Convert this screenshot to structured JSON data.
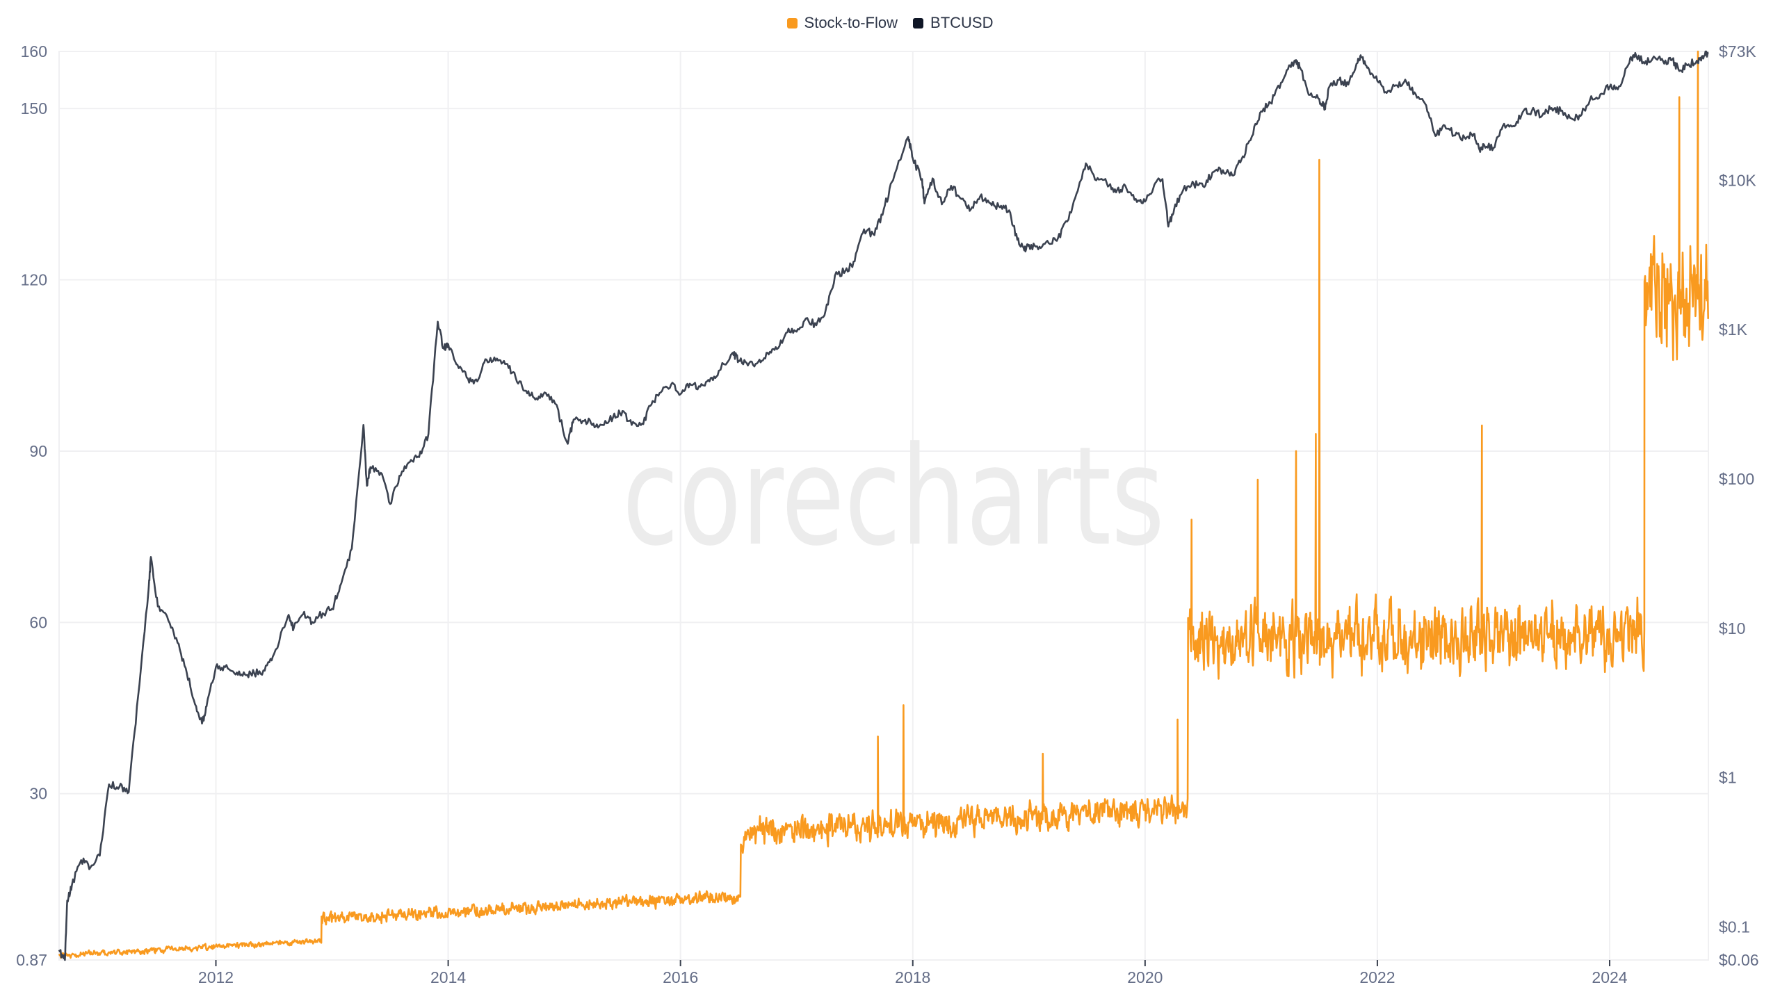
{
  "chart_data": {
    "type": "line",
    "title": "",
    "watermark": "corecharts",
    "legend_position": "top-center",
    "grid": true,
    "colors": {
      "s2f": "#F99A1F",
      "btc": "#3B4250",
      "text": "#646D87",
      "grid": "#F0F0F2",
      "watermark": "#ECECEC"
    },
    "x_axis": {
      "range": [
        2010.65,
        2024.85
      ],
      "ticks": [
        "2012",
        "2014",
        "2016",
        "2018",
        "2020",
        "2022",
        "2024"
      ]
    },
    "y_left": {
      "label": "Stock-to-Flow",
      "scale": "linear",
      "range": [
        0.87,
        160
      ],
      "ticks": [
        0.87,
        30,
        60,
        90,
        120,
        150,
        160
      ],
      "tick_labels": [
        "0.87",
        "30",
        "60",
        "90",
        "120",
        "150",
        "160"
      ]
    },
    "y_right": {
      "label": "BTCUSD",
      "scale": "log",
      "range": [
        0.06,
        73000
      ],
      "ticks": [
        0.06,
        0.1,
        1,
        10,
        100,
        1000,
        10000,
        73000
      ],
      "tick_labels": [
        "$0.06",
        "$0.1",
        "$1",
        "$10",
        "$100",
        "$1K",
        "$10K",
        "$73K"
      ]
    },
    "legend": [
      {
        "name": "Stock-to-Flow",
        "color": "#F99A1F"
      },
      {
        "name": "BTCUSD",
        "color": "#0F1626"
      }
    ],
    "series": [
      {
        "name": "BTCUSD",
        "axis": "right",
        "points": [
          [
            2010.65,
            0.07
          ],
          [
            2010.7,
            0.06
          ],
          [
            2010.72,
            0.15
          ],
          [
            2010.76,
            0.19
          ],
          [
            2010.84,
            0.28
          ],
          [
            2010.92,
            0.25
          ],
          [
            2011.0,
            0.3
          ],
          [
            2011.08,
            0.9
          ],
          [
            2011.17,
            0.87
          ],
          [
            2011.25,
            0.8
          ],
          [
            2011.33,
            3.5
          ],
          [
            2011.42,
            18
          ],
          [
            2011.44,
            30
          ],
          [
            2011.5,
            14
          ],
          [
            2011.58,
            12
          ],
          [
            2011.67,
            8
          ],
          [
            2011.75,
            5
          ],
          [
            2011.83,
            3
          ],
          [
            2011.88,
            2.3
          ],
          [
            2011.92,
            3
          ],
          [
            2012.0,
            5.5
          ],
          [
            2012.08,
            5.5
          ],
          [
            2012.17,
            4.9
          ],
          [
            2012.25,
            4.9
          ],
          [
            2012.33,
            5
          ],
          [
            2012.42,
            5.2
          ],
          [
            2012.5,
            6.7
          ],
          [
            2012.62,
            12
          ],
          [
            2012.67,
            10
          ],
          [
            2012.75,
            12.4
          ],
          [
            2012.83,
            11
          ],
          [
            2012.92,
            12.6
          ],
          [
            2013.0,
            13.5
          ],
          [
            2013.08,
            20
          ],
          [
            2013.17,
            34
          ],
          [
            2013.27,
            230
          ],
          [
            2013.3,
            90
          ],
          [
            2013.33,
            120
          ],
          [
            2013.42,
            110
          ],
          [
            2013.5,
            68
          ],
          [
            2013.58,
            105
          ],
          [
            2013.67,
            130
          ],
          [
            2013.75,
            140
          ],
          [
            2013.83,
            200
          ],
          [
            2013.91,
            1130
          ],
          [
            2013.96,
            750
          ],
          [
            2014.0,
            800
          ],
          [
            2014.08,
            580
          ],
          [
            2014.17,
            470
          ],
          [
            2014.25,
            450
          ],
          [
            2014.33,
            630
          ],
          [
            2014.42,
            640
          ],
          [
            2014.5,
            590
          ],
          [
            2014.58,
            480
          ],
          [
            2014.67,
            390
          ],
          [
            2014.75,
            340
          ],
          [
            2014.83,
            380
          ],
          [
            2014.92,
            320
          ],
          [
            2015.03,
            172
          ],
          [
            2015.08,
            250
          ],
          [
            2015.17,
            245
          ],
          [
            2015.25,
            235
          ],
          [
            2015.33,
            230
          ],
          [
            2015.42,
            260
          ],
          [
            2015.5,
            285
          ],
          [
            2015.58,
            230
          ],
          [
            2015.67,
            235
          ],
          [
            2015.75,
            315
          ],
          [
            2015.83,
            380
          ],
          [
            2015.92,
            430
          ],
          [
            2016.0,
            370
          ],
          [
            2016.08,
            435
          ],
          [
            2016.17,
            415
          ],
          [
            2016.25,
            450
          ],
          [
            2016.33,
            530
          ],
          [
            2016.45,
            700
          ],
          [
            2016.5,
            620
          ],
          [
            2016.58,
            575
          ],
          [
            2016.67,
            610
          ],
          [
            2016.75,
            700
          ],
          [
            2016.83,
            740
          ],
          [
            2016.92,
            960
          ],
          [
            2017.0,
            970
          ],
          [
            2017.08,
            1190
          ],
          [
            2017.17,
            1070
          ],
          [
            2017.25,
            1350
          ],
          [
            2017.33,
            2300
          ],
          [
            2017.42,
            2480
          ],
          [
            2017.5,
            2870
          ],
          [
            2017.58,
            4700
          ],
          [
            2017.67,
            4300
          ],
          [
            2017.75,
            6400
          ],
          [
            2017.83,
            10000
          ],
          [
            2017.96,
            19500
          ],
          [
            2018.0,
            14000
          ],
          [
            2018.08,
            10200
          ],
          [
            2018.1,
            7000
          ],
          [
            2018.17,
            10300
          ],
          [
            2018.25,
            6900
          ],
          [
            2018.33,
            9200
          ],
          [
            2018.42,
            7500
          ],
          [
            2018.5,
            6400
          ],
          [
            2018.58,
            7800
          ],
          [
            2018.67,
            7000
          ],
          [
            2018.75,
            6600
          ],
          [
            2018.83,
            6300
          ],
          [
            2018.9,
            4000
          ],
          [
            2018.96,
            3400
          ],
          [
            2019.0,
            3700
          ],
          [
            2019.08,
            3450
          ],
          [
            2019.17,
            3800
          ],
          [
            2019.25,
            4100
          ],
          [
            2019.33,
            5300
          ],
          [
            2019.42,
            8500
          ],
          [
            2019.49,
            13000
          ],
          [
            2019.58,
            10000
          ],
          [
            2019.67,
            9600
          ],
          [
            2019.75,
            8300
          ],
          [
            2019.83,
            9200
          ],
          [
            2019.92,
            7500
          ],
          [
            2020.0,
            7200
          ],
          [
            2020.08,
            9350
          ],
          [
            2020.15,
            10200
          ],
          [
            2020.2,
            4900
          ],
          [
            2020.25,
            6400
          ],
          [
            2020.33,
            8700
          ],
          [
            2020.42,
            9450
          ],
          [
            2020.5,
            9100
          ],
          [
            2020.58,
            11300
          ],
          [
            2020.67,
            11700
          ],
          [
            2020.75,
            10800
          ],
          [
            2020.83,
            13800
          ],
          [
            2020.92,
            19700
          ],
          [
            2021.0,
            29000
          ],
          [
            2021.08,
            33000
          ],
          [
            2021.17,
            45000
          ],
          [
            2021.25,
            58800
          ],
          [
            2021.29,
            63500
          ],
          [
            2021.33,
            57700
          ],
          [
            2021.42,
            37300
          ],
          [
            2021.5,
            35000
          ],
          [
            2021.55,
            30000
          ],
          [
            2021.58,
            41500
          ],
          [
            2021.67,
            47100
          ],
          [
            2021.75,
            43800
          ],
          [
            2021.83,
            61300
          ],
          [
            2021.86,
            67000
          ],
          [
            2021.92,
            57000
          ],
          [
            2022.0,
            46300
          ],
          [
            2022.08,
            38500
          ],
          [
            2022.17,
            43200
          ],
          [
            2022.25,
            45500
          ],
          [
            2022.33,
            37700
          ],
          [
            2022.42,
            31800
          ],
          [
            2022.5,
            19800
          ],
          [
            2022.58,
            23300
          ],
          [
            2022.67,
            20000
          ],
          [
            2022.75,
            19400
          ],
          [
            2022.83,
            20500
          ],
          [
            2022.88,
            16000
          ],
          [
            2022.92,
            17200
          ],
          [
            2023.0,
            16500
          ],
          [
            2023.08,
            23100
          ],
          [
            2023.17,
            23100
          ],
          [
            2023.25,
            28500
          ],
          [
            2023.33,
            29200
          ],
          [
            2023.42,
            27200
          ],
          [
            2023.5,
            30500
          ],
          [
            2023.58,
            29200
          ],
          [
            2023.67,
            26000
          ],
          [
            2023.75,
            27000
          ],
          [
            2023.83,
            34500
          ],
          [
            2023.92,
            37700
          ],
          [
            2024.0,
            42300
          ],
          [
            2024.08,
            42600
          ],
          [
            2024.17,
            61200
          ],
          [
            2024.22,
            71300
          ],
          [
            2024.3,
            60600
          ],
          [
            2024.38,
            67500
          ],
          [
            2024.46,
            62700
          ],
          [
            2024.54,
            64600
          ],
          [
            2024.6,
            54000
          ],
          [
            2024.67,
            59000
          ],
          [
            2024.75,
            63300
          ],
          [
            2024.8,
            68000
          ],
          [
            2024.85,
            72000
          ]
        ]
      },
      {
        "name": "Stock-to-Flow",
        "axis": "left",
        "segments": [
          {
            "start": 2010.65,
            "end": 2012.91,
            "base_start": 1.6,
            "base_end": 4.3,
            "noise": 0.7
          },
          {
            "start": 2012.91,
            "end": 2016.52,
            "base_start": 8.0,
            "base_end": 12.0,
            "noise": 1.6
          },
          {
            "start": 2016.52,
            "end": 2020.37,
            "base_start": 23.0,
            "base_end": 27.5,
            "noise": 3.6
          },
          {
            "start": 2020.37,
            "end": 2024.3,
            "base_start": 57.0,
            "base_end": 57.5,
            "noise": 8.5
          },
          {
            "start": 2024.3,
            "end": 2024.85,
            "base_start": 118.0,
            "base_end": 117.0,
            "noise": 14.0
          }
        ],
        "spikes": [
          [
            2017.7,
            40
          ],
          [
            2017.92,
            45.5
          ],
          [
            2019.12,
            37
          ],
          [
            2020.28,
            43
          ],
          [
            2020.4,
            78
          ],
          [
            2020.97,
            85
          ],
          [
            2021.3,
            90
          ],
          [
            2021.47,
            93
          ],
          [
            2021.5,
            141
          ],
          [
            2022.9,
            94.5
          ],
          [
            2024.6,
            152
          ],
          [
            2024.76,
            160
          ]
        ]
      }
    ]
  }
}
